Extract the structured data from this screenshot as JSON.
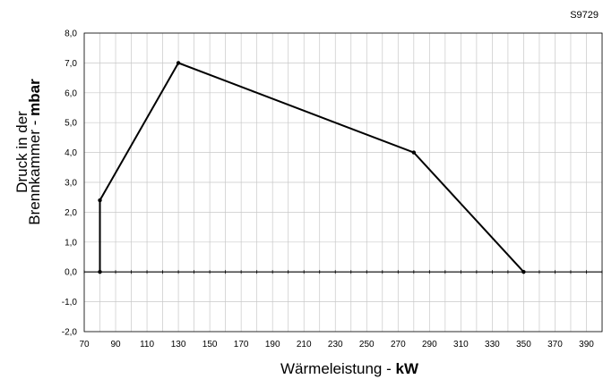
{
  "figure_code": "S9729",
  "chart_data": {
    "type": "line",
    "x_label": "Wärmeleistung - ",
    "x_unit": "kW",
    "y_label_line1": "Druck in der",
    "y_label_line2": "Brennkammer - ",
    "y_unit": "mbar",
    "xlim": [
      70,
      400
    ],
    "ylim": [
      -2.0,
      8.0
    ],
    "x_ticks": [
      "70",
      "90",
      "110",
      "130",
      "150",
      "170",
      "190",
      "210",
      "230",
      "250",
      "270",
      "290",
      "310",
      "330",
      "350",
      "370",
      "390"
    ],
    "y_ticks": [
      "8,0",
      "7,0",
      "6,0",
      "5,0",
      "4,0",
      "3,0",
      "2,0",
      "1,0",
      "0,0",
      "-1,0",
      "-2,0"
    ],
    "grid": true,
    "series": [
      {
        "points": [
          [
            80,
            0.0
          ],
          [
            80,
            2.4
          ],
          [
            130,
            7.0
          ],
          [
            280,
            4.0
          ],
          [
            350,
            0.0
          ]
        ]
      }
    ],
    "colors": {
      "line": "#000000",
      "grid": "#c8c8c8",
      "frame": "#000000"
    }
  }
}
